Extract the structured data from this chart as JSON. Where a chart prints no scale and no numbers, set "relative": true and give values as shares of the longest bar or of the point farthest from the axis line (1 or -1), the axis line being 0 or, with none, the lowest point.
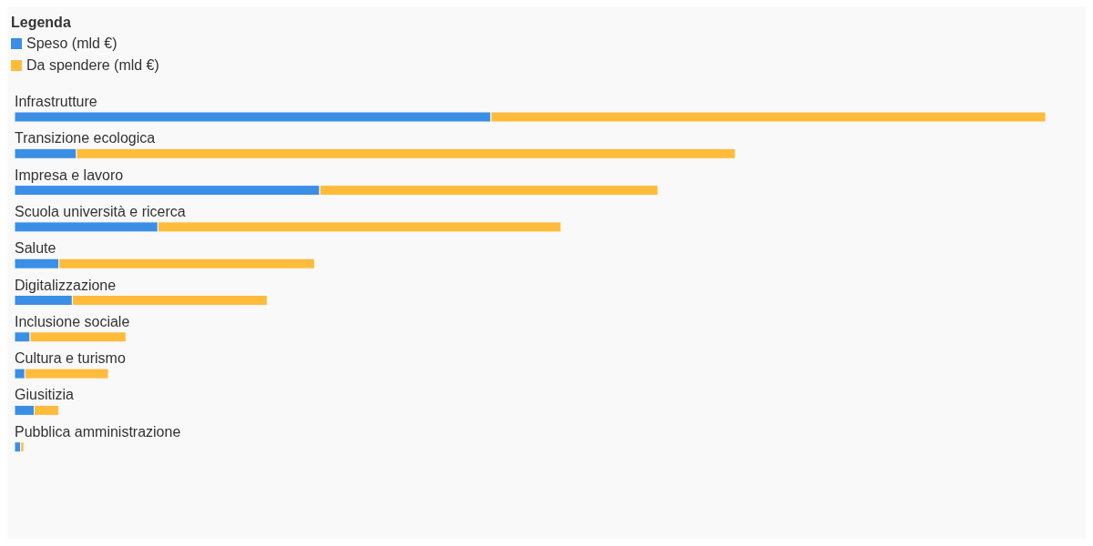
{
  "chart_data": {
    "type": "bar",
    "orientation": "horizontal",
    "stacked": true,
    "relative": true,
    "legend": "top left",
    "legend_title": "Legenda",
    "categories": [
      "Infrastrutture",
      "Transizione ecologica",
      "Impresa e lavoro",
      "Scuola università e ricerca",
      "Salute",
      "Digitalizzazione",
      "Inclusione sociale",
      "Cultura e turismo",
      "Giusitizia",
      "Pubblica amministrazione"
    ],
    "series": [
      {
        "name": "Speso (mld €)",
        "color": "#3a8ee6",
        "values": [
          0.462,
          0.06,
          0.296,
          0.139,
          0.043,
          0.056,
          0.015,
          0.01,
          0.019,
          0.006
        ]
      },
      {
        "name": "Da spendere (mld €)",
        "color": "#ffbb3a",
        "values": [
          0.538,
          0.639,
          0.328,
          0.391,
          0.248,
          0.189,
          0.093,
          0.081,
          0.024,
          0.003
        ]
      }
    ]
  }
}
